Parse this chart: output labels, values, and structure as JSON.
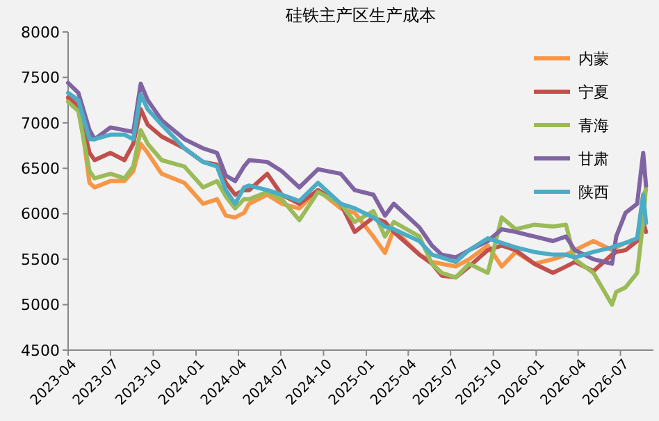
{
  "chart_data": {
    "type": "line",
    "title": "硅铁主产区生产成本",
    "x": [
      "2023-04-01",
      "2023-04-23",
      "2023-05-17",
      "2023-05-28",
      "2023-07-01",
      "2023-07-31",
      "2023-08-19",
      "2023-09-04",
      "2023-09-19",
      "2023-10-19",
      "2023-12-07",
      "2024-01-16",
      "2024-02-15",
      "2024-03-05",
      "2024-03-25",
      "2024-04-13",
      "2024-04-24",
      "2024-06-02",
      "2024-07-03",
      "2024-08-10",
      "2024-09-19",
      "2024-11-07",
      "2024-12-07",
      "2025-01-16",
      "2025-02-10",
      "2025-03-01",
      "2025-04-25",
      "2025-05-22",
      "2025-06-12",
      "2025-07-12",
      "2025-08-10",
      "2025-09-19",
      "2025-10-19",
      "2025-11-18",
      "2025-12-28",
      "2026-02-06",
      "2026-03-06",
      "2026-03-25",
      "2026-05-04",
      "2026-06-13",
      "2026-06-22",
      "2026-07-12",
      "2026-08-06",
      "2026-08-19",
      "2026-08-25"
    ],
    "series": [
      {
        "name": "内蒙",
        "color": "#f79646",
        "values": [
          7260,
          7260,
          6340,
          6290,
          6360,
          6360,
          6470,
          6770,
          6670,
          6440,
          6340,
          6110,
          6160,
          5980,
          5960,
          6010,
          6110,
          6210,
          6110,
          6060,
          6260,
          6060,
          6010,
          5750,
          5570,
          5830,
          5550,
          5470,
          5450,
          5420,
          5500,
          5650,
          5420,
          5580,
          5450,
          5500,
          5550,
          5600,
          5700,
          5600,
          5630,
          5680,
          5700,
          6210,
          6260
        ]
      },
      {
        "name": "宁夏",
        "color": "#c0504d",
        "values": [
          7280,
          7180,
          6670,
          6590,
          6670,
          6590,
          6770,
          7150,
          6980,
          6850,
          6720,
          6570,
          6540,
          6340,
          6210,
          6260,
          6260,
          6440,
          6210,
          6110,
          6260,
          6110,
          5800,
          5960,
          5910,
          5800,
          5550,
          5450,
          5320,
          5300,
          5420,
          5600,
          5650,
          5600,
          5450,
          5350,
          5420,
          5470,
          5370,
          5550,
          5580,
          5600,
          5700,
          5910,
          5800
        ]
      },
      {
        "name": "青海",
        "color": "#9bbb59",
        "values": [
          7230,
          7130,
          6470,
          6390,
          6440,
          6390,
          6520,
          6920,
          6770,
          6590,
          6520,
          6290,
          6360,
          6190,
          6060,
          6160,
          6160,
          6240,
          6160,
          5930,
          6240,
          6110,
          5910,
          6030,
          5750,
          5910,
          5750,
          5450,
          5350,
          5300,
          5450,
          5350,
          5960,
          5830,
          5880,
          5860,
          5880,
          5500,
          5350,
          5000,
          5140,
          5190,
          5350,
          5910,
          6310
        ]
      },
      {
        "name": "甘肃",
        "color": "#8064a2",
        "values": [
          7440,
          7330,
          6920,
          6820,
          6950,
          6920,
          6900,
          7430,
          7250,
          7030,
          6820,
          6720,
          6670,
          6420,
          6360,
          6520,
          6590,
          6570,
          6470,
          6290,
          6490,
          6440,
          6260,
          6210,
          5980,
          6110,
          5850,
          5650,
          5550,
          5520,
          5600,
          5700,
          5830,
          5800,
          5750,
          5700,
          5750,
          5600,
          5500,
          5450,
          5750,
          6010,
          6110,
          6670,
          6310
        ]
      },
      {
        "name": "陕西",
        "color": "#4bacc6",
        "values": [
          7330,
          7250,
          6820,
          6820,
          6870,
          6870,
          6820,
          7310,
          7150,
          6980,
          6720,
          6570,
          6520,
          6260,
          6110,
          6290,
          6310,
          6260,
          6210,
          6140,
          6340,
          6110,
          6060,
          5960,
          5860,
          5830,
          5700,
          5550,
          5520,
          5470,
          5600,
          5730,
          5680,
          5630,
          5580,
          5550,
          5550,
          5520,
          5580,
          5630,
          5650,
          5680,
          5730,
          6210,
          5900
        ]
      }
    ],
    "xlim": [
      "2023-04-01",
      "2026-09-10"
    ],
    "xticks": [
      "2023-04",
      "2023-07",
      "2023-10",
      "2024-01",
      "2024-04",
      "2024-07",
      "2024-10",
      "2025-01",
      "2025-04",
      "2025-07",
      "2025-10",
      "2026-01",
      "2026-04",
      "2026-07"
    ],
    "ylim": [
      4500,
      8000
    ],
    "yticks": [
      4500,
      5000,
      5500,
      6000,
      6500,
      7000,
      7500,
      8000
    ],
    "grid": false,
    "legend": "top right",
    "marker": "none",
    "line_style": "solid"
  }
}
